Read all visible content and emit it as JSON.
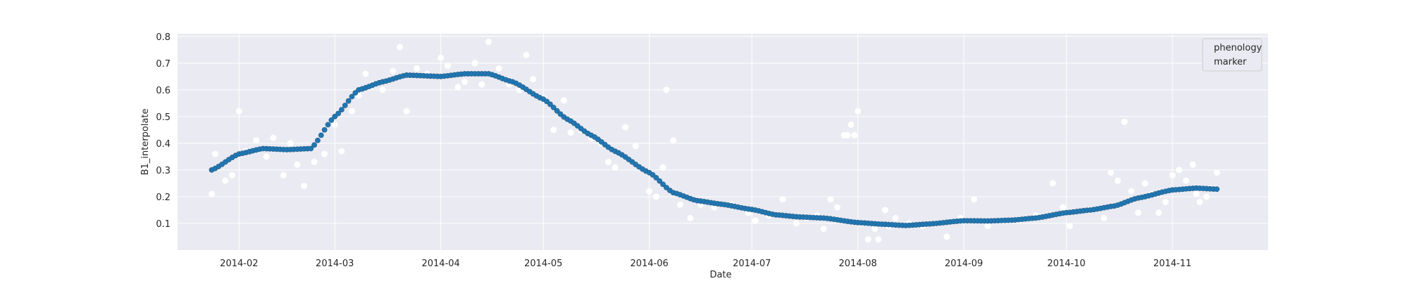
{
  "chart_data": {
    "type": "scatter",
    "xlabel": "Date",
    "ylabel": "B1_interpolate",
    "xlim": [
      "2014-01-14",
      "2014-11-29"
    ],
    "ylim": [
      0.0,
      0.81
    ],
    "x_ticks": [
      "2014-02-01",
      "2014-03-01",
      "2014-04-01",
      "2014-05-01",
      "2014-06-01",
      "2014-07-01",
      "2014-08-01",
      "2014-09-01",
      "2014-10-01",
      "2014-11-01"
    ],
    "x_tick_labels": [
      "2014-02",
      "2014-03",
      "2014-04",
      "2014-05",
      "2014-06",
      "2014-07",
      "2014-08",
      "2014-09",
      "2014-10",
      "2014-11"
    ],
    "y_ticks": [
      0.1,
      0.2,
      0.3,
      0.4,
      0.5,
      0.6,
      0.7,
      0.8
    ],
    "y_tick_labels": [
      "0.1",
      "0.2",
      "0.3",
      "0.4",
      "0.5",
      "0.6",
      "0.7",
      "0.8"
    ],
    "grid": true,
    "legend": {
      "placement": "top-right",
      "entries": [
        "phenology",
        "marker"
      ]
    },
    "colors": {
      "background": "#eaeaf2",
      "grid": "#ffffff",
      "curve": "#1f77b4",
      "curve_edge": "#2a5d80",
      "raw": "#ffffff"
    },
    "series": [
      {
        "name": "phenology",
        "style": "dots",
        "points": [
          [
            "2014-01-24",
            0.3
          ],
          [
            "2014-02-01",
            0.36
          ],
          [
            "2014-02-08",
            0.38
          ],
          [
            "2014-02-15",
            0.376
          ],
          [
            "2014-02-22",
            0.38
          ],
          [
            "2014-03-01",
            0.5
          ],
          [
            "2014-03-08",
            0.6
          ],
          [
            "2014-03-15",
            0.63
          ],
          [
            "2014-03-22",
            0.655
          ],
          [
            "2014-04-01",
            0.65
          ],
          [
            "2014-04-08",
            0.66
          ],
          [
            "2014-04-15",
            0.66
          ],
          [
            "2014-04-22",
            0.63
          ],
          [
            "2014-05-01",
            0.565
          ],
          [
            "2014-05-08",
            0.49
          ],
          [
            "2014-05-15",
            0.43
          ],
          [
            "2014-05-22",
            0.37
          ],
          [
            "2014-06-01",
            0.29
          ],
          [
            "2014-06-08",
            0.215
          ],
          [
            "2014-06-15",
            0.185
          ],
          [
            "2014-06-22",
            0.172
          ],
          [
            "2014-07-01",
            0.152
          ],
          [
            "2014-07-08",
            0.132
          ],
          [
            "2014-07-15",
            0.124
          ],
          [
            "2014-07-22",
            0.12
          ],
          [
            "2014-08-01",
            0.103
          ],
          [
            "2014-08-08",
            0.097
          ],
          [
            "2014-08-15",
            0.092
          ],
          [
            "2014-08-22",
            0.098
          ],
          [
            "2014-09-01",
            0.11
          ],
          [
            "2014-09-08",
            0.109
          ],
          [
            "2014-09-15",
            0.112
          ],
          [
            "2014-09-22",
            0.12
          ],
          [
            "2014-10-01",
            0.14
          ],
          [
            "2014-10-08",
            0.15
          ],
          [
            "2014-10-15",
            0.165
          ],
          [
            "2014-10-22",
            0.195
          ],
          [
            "2014-11-01",
            0.225
          ],
          [
            "2014-11-08",
            0.232
          ],
          [
            "2014-11-14",
            0.228
          ]
        ]
      },
      {
        "name": "marker",
        "style": "white-scatter",
        "points": [
          [
            "2014-01-24",
            0.21
          ],
          [
            "2014-01-25",
            0.36
          ],
          [
            "2014-01-28",
            0.26
          ],
          [
            "2014-01-30",
            0.28
          ],
          [
            "2014-02-01",
            0.52
          ],
          [
            "2014-02-03",
            0.37
          ],
          [
            "2014-02-06",
            0.41
          ],
          [
            "2014-02-09",
            0.35
          ],
          [
            "2014-02-11",
            0.42
          ],
          [
            "2014-02-14",
            0.28
          ],
          [
            "2014-02-16",
            0.4
          ],
          [
            "2014-02-18",
            0.32
          ],
          [
            "2014-02-20",
            0.24
          ],
          [
            "2014-02-23",
            0.33
          ],
          [
            "2014-02-26",
            0.36
          ],
          [
            "2014-03-01",
            0.47
          ],
          [
            "2014-03-03",
            0.37
          ],
          [
            "2014-03-06",
            0.52
          ],
          [
            "2014-03-08",
            0.58
          ],
          [
            "2014-03-10",
            0.66
          ],
          [
            "2014-03-12",
            0.62
          ],
          [
            "2014-03-15",
            0.6
          ],
          [
            "2014-03-18",
            0.67
          ],
          [
            "2014-03-20",
            0.76
          ],
          [
            "2014-03-22",
            0.52
          ],
          [
            "2014-03-25",
            0.68
          ],
          [
            "2014-03-28",
            0.66
          ],
          [
            "2014-04-01",
            0.72
          ],
          [
            "2014-04-03",
            0.69
          ],
          [
            "2014-04-06",
            0.61
          ],
          [
            "2014-04-08",
            0.63
          ],
          [
            "2014-04-11",
            0.7
          ],
          [
            "2014-04-13",
            0.62
          ],
          [
            "2014-04-15",
            0.78
          ],
          [
            "2014-04-18",
            0.68
          ],
          [
            "2014-04-21",
            0.62
          ],
          [
            "2014-04-24",
            0.6
          ],
          [
            "2014-04-26",
            0.73
          ],
          [
            "2014-04-28",
            0.64
          ],
          [
            "2014-05-01",
            0.57
          ],
          [
            "2014-05-04",
            0.45
          ],
          [
            "2014-05-07",
            0.56
          ],
          [
            "2014-05-09",
            0.44
          ],
          [
            "2014-05-12",
            0.45
          ],
          [
            "2014-05-15",
            0.42
          ],
          [
            "2014-05-18",
            0.4
          ],
          [
            "2014-05-20",
            0.33
          ],
          [
            "2014-05-22",
            0.31
          ],
          [
            "2014-05-25",
            0.46
          ],
          [
            "2014-05-28",
            0.39
          ],
          [
            "2014-06-01",
            0.22
          ],
          [
            "2014-06-03",
            0.2
          ],
          [
            "2014-06-05",
            0.31
          ],
          [
            "2014-06-06",
            0.6
          ],
          [
            "2014-06-08",
            0.41
          ],
          [
            "2014-06-10",
            0.17
          ],
          [
            "2014-06-13",
            0.12
          ],
          [
            "2014-06-16",
            0.17
          ],
          [
            "2014-06-20",
            0.16
          ],
          [
            "2014-06-25",
            0.17
          ],
          [
            "2014-06-30",
            0.14
          ],
          [
            "2014-07-02",
            0.11
          ],
          [
            "2014-07-06",
            0.13
          ],
          [
            "2014-07-10",
            0.19
          ],
          [
            "2014-07-14",
            0.1
          ],
          [
            "2014-07-17",
            0.12
          ],
          [
            "2014-07-20",
            0.13
          ],
          [
            "2014-07-22",
            0.08
          ],
          [
            "2014-07-24",
            0.19
          ],
          [
            "2014-07-26",
            0.16
          ],
          [
            "2014-07-28",
            0.43
          ],
          [
            "2014-07-30",
            0.47
          ],
          [
            "2014-07-31",
            0.43
          ],
          [
            "2014-08-01",
            0.52
          ],
          [
            "2014-07-29",
            0.43
          ],
          [
            "2014-08-02",
            0.1
          ],
          [
            "2014-08-04",
            0.04
          ],
          [
            "2014-08-06",
            0.08
          ],
          [
            "2014-08-07",
            0.04
          ],
          [
            "2014-08-09",
            0.15
          ],
          [
            "2014-08-10",
            0.09
          ],
          [
            "2014-08-12",
            0.12
          ],
          [
            "2014-08-16",
            0.1
          ],
          [
            "2014-08-20",
            0.09
          ],
          [
            "2014-08-24",
            0.1
          ],
          [
            "2014-08-27",
            0.05
          ],
          [
            "2014-08-31",
            0.12
          ],
          [
            "2014-09-04",
            0.19
          ],
          [
            "2014-09-08",
            0.09
          ],
          [
            "2014-09-12",
            0.11
          ],
          [
            "2014-09-17",
            0.11
          ],
          [
            "2014-09-22",
            0.13
          ],
          [
            "2014-09-27",
            0.25
          ],
          [
            "2014-09-30",
            0.16
          ],
          [
            "2014-10-02",
            0.09
          ],
          [
            "2014-10-08",
            0.15
          ],
          [
            "2014-10-12",
            0.12
          ],
          [
            "2014-10-14",
            0.29
          ],
          [
            "2014-10-16",
            0.26
          ],
          [
            "2014-10-18",
            0.48
          ],
          [
            "2014-10-20",
            0.22
          ],
          [
            "2014-10-22",
            0.14
          ],
          [
            "2014-10-24",
            0.25
          ],
          [
            "2014-10-26",
            0.21
          ],
          [
            "2014-10-28",
            0.14
          ],
          [
            "2014-10-30",
            0.18
          ],
          [
            "2014-11-01",
            0.28
          ],
          [
            "2014-11-03",
            0.3
          ],
          [
            "2014-11-05",
            0.26
          ],
          [
            "2014-11-07",
            0.32
          ],
          [
            "2014-11-08",
            0.21
          ],
          [
            "2014-11-09",
            0.18
          ],
          [
            "2014-11-11",
            0.2
          ],
          [
            "2014-11-12",
            0.23
          ],
          [
            "2014-11-14",
            0.29
          ]
        ]
      }
    ]
  }
}
